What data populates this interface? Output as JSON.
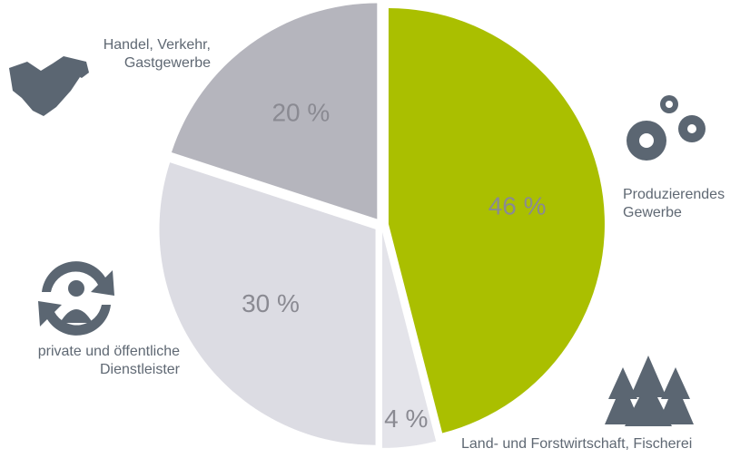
{
  "chart_data": {
    "type": "pie",
    "categories": [
      "Produzierendes\nGewerbe",
      "Land- und Forstwirtschaft, Fischerei",
      "private und öffentliche\nDienstleister",
      "Handel, Verkehr,\nGastgewerbe"
    ],
    "values": [
      46,
      4,
      30,
      20
    ],
    "value_labels": [
      "46 %",
      "4 %",
      "30 %",
      "20 %"
    ],
    "colors": [
      "#aabf00",
      "#e4e4ea",
      "#dcdce3",
      "#b5b5bd"
    ]
  }
}
